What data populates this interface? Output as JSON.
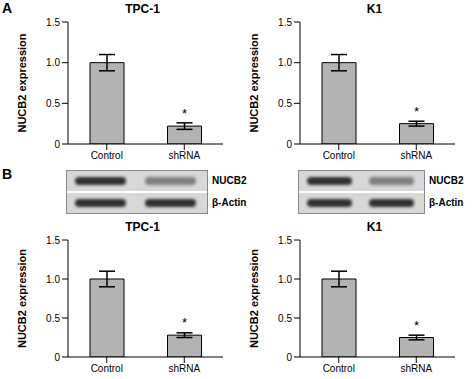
{
  "panels": [
    "A",
    "B"
  ],
  "chart_data": [
    {
      "type": "bar",
      "panel": "A",
      "title": "TPC-1",
      "y_label": "NUCB2 expression",
      "categories": [
        "Control",
        "shRNA"
      ],
      "values": [
        1.0,
        0.22
      ],
      "errors": [
        0.1,
        0.04
      ],
      "annotations": [
        null,
        "*"
      ],
      "color": "#b3b3b3",
      "ylim": [
        0,
        1.5
      ],
      "yticks": [
        0,
        0.5,
        {
          "value": 1,
          "label": "1.0"
        },
        1.5
      ],
      "grid": false
    },
    {
      "type": "bar",
      "panel": "A",
      "title": "K1",
      "y_label": "NUCB2 expression",
      "categories": [
        "Control",
        "shRNA"
      ],
      "values": [
        1.0,
        0.25
      ],
      "errors": [
        0.1,
        0.03
      ],
      "annotations": [
        null,
        "*"
      ],
      "color": "#b3b3b3",
      "ylim": [
        0,
        1.5
      ],
      "yticks": [
        0,
        0.5,
        {
          "value": 1,
          "label": "1.0"
        },
        1.5
      ],
      "grid": false
    },
    {
      "type": "bar",
      "panel": "B",
      "title": "TPC-1",
      "y_label": "NUCB2 expression",
      "categories": [
        "Control",
        "shRNA"
      ],
      "values": [
        1.0,
        0.28
      ],
      "errors": [
        0.1,
        0.03
      ],
      "annotations": [
        null,
        "*"
      ],
      "color": "#b3b3b3",
      "ylim": [
        0,
        1.5
      ],
      "yticks": [
        0,
        0.5,
        {
          "value": 1,
          "label": "1.0"
        },
        1.5
      ],
      "grid": false
    },
    {
      "type": "bar",
      "panel": "B",
      "title": "K1",
      "y_label": "NUCB2 expression",
      "categories": [
        "Control",
        "shRNA"
      ],
      "values": [
        1.0,
        0.25
      ],
      "errors": [
        0.1,
        0.03
      ],
      "annotations": [
        null,
        "*"
      ],
      "color": "#b3b3b3",
      "ylim": [
        0,
        1.5
      ],
      "yticks": [
        0,
        0.5,
        {
          "value": 1,
          "label": "1.0"
        },
        1.5
      ],
      "grid": false
    }
  ],
  "blots": [
    {
      "rows": [
        "NUCB2",
        "β-Actin"
      ]
    },
    {
      "rows": [
        "NUCB2",
        "β-Actin"
      ]
    }
  ]
}
